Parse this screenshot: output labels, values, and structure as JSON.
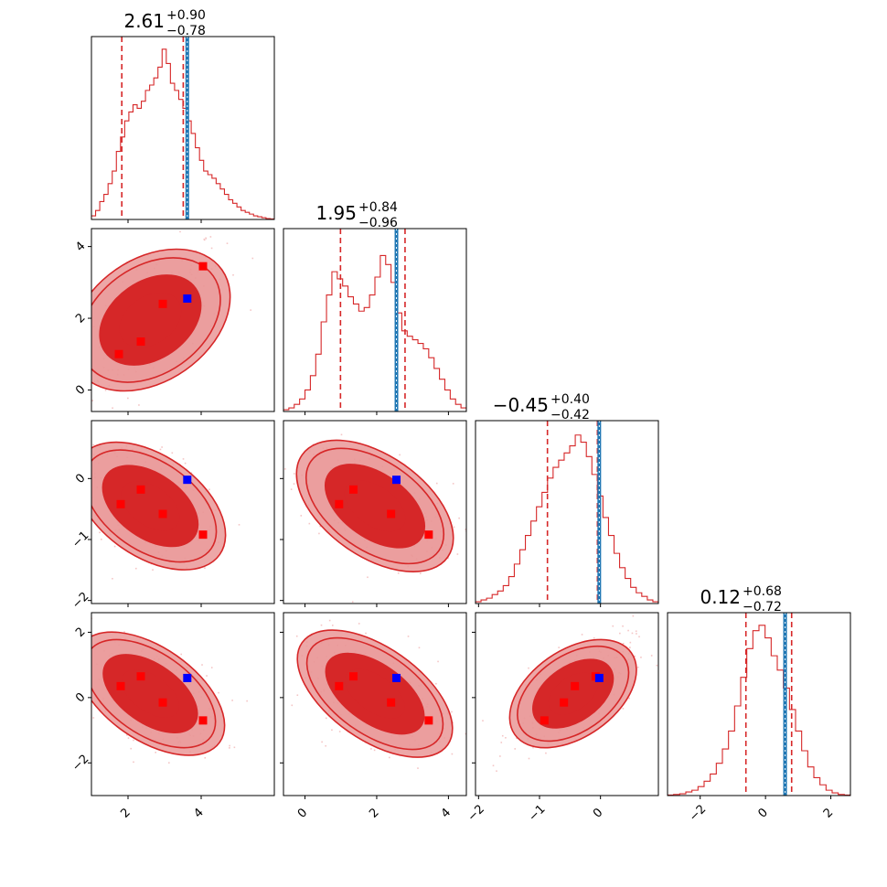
{
  "chart_data": {
    "type": "corner",
    "colors": {
      "posterior": "#d62728",
      "posterior_light": "#e88585",
      "posterior_mid": "#ea9898",
      "truth_line": "#1f77b4",
      "truth_marker": "#0000ff",
      "sample_marker": "#ff0000",
      "scatter": "#f4c6c6"
    },
    "parameters": [
      {
        "index": 0,
        "range": [
          1.0,
          6.0
        ],
        "ticks": [
          2,
          4
        ],
        "tick_labels": [
          "2",
          "4"
        ],
        "title": {
          "value": "2.61",
          "plus": "+0.90",
          "minus": "−0.78"
        },
        "quantiles": [
          1.83,
          2.61,
          3.51
        ],
        "truth": 3.62
      },
      {
        "index": 1,
        "range": [
          -0.6,
          4.5
        ],
        "ticks": [
          0,
          2,
          4
        ],
        "tick_labels": [
          "0",
          "2",
          "4"
        ],
        "title": {
          "value": "1.95",
          "plus": "+0.84",
          "minus": "−0.96"
        },
        "quantiles": [
          0.99,
          1.95,
          2.79
        ],
        "truth": 2.55
      },
      {
        "index": 2,
        "range": [
          -2.05,
          0.95
        ],
        "ticks": [
          -2,
          -1,
          0
        ],
        "tick_labels": [
          "−2",
          "−1",
          "0"
        ],
        "title": {
          "value": "−0.45",
          "plus": "+0.40",
          "minus": "−0.42"
        },
        "quantiles": [
          -0.87,
          -0.45,
          -0.05
        ],
        "truth": -0.02
      },
      {
        "index": 3,
        "range": [
          -3.0,
          2.6
        ],
        "ticks": [
          -2,
          0,
          2
        ],
        "tick_labels": [
          "−2",
          "0",
          "2"
        ],
        "title": {
          "value": "0.12",
          "plus": "+0.68",
          "minus": "−0.72"
        },
        "quantiles": [
          -0.6,
          0.12,
          0.8
        ],
        "truth": 0.6
      }
    ],
    "histograms": [
      [
        0.02,
        0.05,
        0.1,
        0.14,
        0.2,
        0.27,
        0.38,
        0.46,
        0.55,
        0.6,
        0.64,
        0.62,
        0.66,
        0.72,
        0.75,
        0.79,
        0.85,
        0.95,
        0.87,
        0.76,
        0.72,
        0.67,
        0.62,
        0.55,
        0.48,
        0.4,
        0.33,
        0.27,
        0.25,
        0.23,
        0.2,
        0.17,
        0.14,
        0.11,
        0.09,
        0.07,
        0.05,
        0.04,
        0.03,
        0.02,
        0.015,
        0.01,
        0.005,
        0.003
      ],
      [
        0.01,
        0.02,
        0.04,
        0.07,
        0.12,
        0.2,
        0.32,
        0.5,
        0.65,
        0.78,
        0.74,
        0.7,
        0.64,
        0.6,
        0.56,
        0.58,
        0.65,
        0.75,
        0.87,
        0.82,
        0.72,
        0.55,
        0.45,
        0.42,
        0.4,
        0.38,
        0.35,
        0.3,
        0.24,
        0.18,
        0.12,
        0.07,
        0.04,
        0.02
      ],
      [
        0.01,
        0.02,
        0.03,
        0.05,
        0.07,
        0.1,
        0.15,
        0.22,
        0.3,
        0.38,
        0.46,
        0.54,
        0.62,
        0.7,
        0.76,
        0.8,
        0.84,
        0.88,
        0.94,
        0.9,
        0.82,
        0.72,
        0.6,
        0.48,
        0.38,
        0.28,
        0.2,
        0.14,
        0.09,
        0.06,
        0.04,
        0.02,
        0.01
      ],
      [
        0.003,
        0.006,
        0.01,
        0.02,
        0.03,
        0.05,
        0.08,
        0.12,
        0.18,
        0.26,
        0.36,
        0.5,
        0.66,
        0.82,
        0.92,
        0.95,
        0.88,
        0.78,
        0.7,
        0.6,
        0.48,
        0.36,
        0.25,
        0.16,
        0.1,
        0.06,
        0.03,
        0.015,
        0.006,
        0.003
      ]
    ],
    "pair_points": {
      "0-1": {
        "red": [
          [
            1.75,
            1.0
          ],
          [
            2.35,
            1.35
          ],
          [
            2.95,
            2.4
          ],
          [
            4.05,
            3.45
          ]
        ],
        "blue": [
          3.62,
          2.55
        ]
      },
      "0-2": {
        "red": [
          [
            1.8,
            -0.42
          ],
          [
            2.35,
            -0.18
          ],
          [
            2.95,
            -0.58
          ],
          [
            4.05,
            -0.92
          ]
        ],
        "blue": [
          3.62,
          -0.02
        ]
      },
      "0-3": {
        "red": [
          [
            1.8,
            0.35
          ],
          [
            2.35,
            0.65
          ],
          [
            2.95,
            -0.15
          ],
          [
            4.05,
            -0.7
          ]
        ],
        "blue": [
          3.62,
          0.6
        ]
      },
      "1-2": {
        "red": [
          [
            0.95,
            -0.42
          ],
          [
            1.35,
            -0.18
          ],
          [
            2.4,
            -0.58
          ],
          [
            3.45,
            -0.92
          ]
        ],
        "blue": [
          2.55,
          -0.02
        ]
      },
      "1-3": {
        "red": [
          [
            0.95,
            0.35
          ],
          [
            1.35,
            0.65
          ],
          [
            2.4,
            -0.15
          ],
          [
            3.45,
            -0.7
          ]
        ],
        "blue": [
          2.55,
          0.6
        ]
      },
      "2-3": {
        "red": [
          [
            -0.92,
            -0.7
          ],
          [
            -0.6,
            -0.15
          ],
          [
            -0.42,
            0.35
          ],
          [
            -0.08,
            0.65
          ]
        ],
        "blue": [
          -0.02,
          0.6
        ]
      }
    }
  }
}
